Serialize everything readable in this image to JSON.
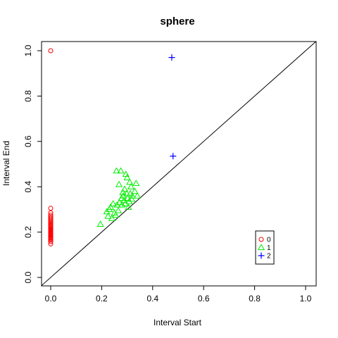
{
  "chart_data": {
    "type": "scatter",
    "title": "sphere",
    "xlabel": "Interval Start",
    "ylabel": "Interval End",
    "xlim": [
      0,
      1
    ],
    "ylim": [
      0,
      1
    ],
    "x_ticks": [
      "0.0",
      "0.2",
      "0.4",
      "0.6",
      "0.8",
      "1.0"
    ],
    "y_ticks": [
      "0.0",
      "0.2",
      "0.4",
      "0.6",
      "0.8",
      "1.0"
    ],
    "grid": false,
    "diagonal_line": true,
    "legend_position": "bottom-right",
    "series": [
      {
        "name": "0",
        "marker": "circle",
        "color": "#ff0000",
        "points": [
          [
            0,
            1.0
          ],
          [
            0,
            0.305
          ],
          [
            0,
            0.285
          ],
          [
            0,
            0.275
          ],
          [
            0,
            0.268
          ],
          [
            0,
            0.262
          ],
          [
            0,
            0.256
          ],
          [
            0,
            0.25
          ],
          [
            0,
            0.245
          ],
          [
            0,
            0.24
          ],
          [
            0,
            0.235
          ],
          [
            0,
            0.23
          ],
          [
            0,
            0.226
          ],
          [
            0,
            0.222
          ],
          [
            0,
            0.218
          ],
          [
            0,
            0.214
          ],
          [
            0,
            0.21
          ],
          [
            0,
            0.206
          ],
          [
            0,
            0.202
          ],
          [
            0,
            0.198
          ],
          [
            0,
            0.194
          ],
          [
            0,
            0.19
          ],
          [
            0,
            0.186
          ],
          [
            0,
            0.182
          ],
          [
            0,
            0.178
          ],
          [
            0,
            0.174
          ],
          [
            0,
            0.17
          ],
          [
            0,
            0.165
          ],
          [
            0,
            0.158
          ],
          [
            0,
            0.148
          ]
        ]
      },
      {
        "name": "1",
        "marker": "triangle",
        "color": "#00ee00",
        "points": [
          [
            0.195,
            0.235
          ],
          [
            0.22,
            0.29
          ],
          [
            0.225,
            0.27
          ],
          [
            0.23,
            0.3
          ],
          [
            0.235,
            0.31
          ],
          [
            0.24,
            0.26
          ],
          [
            0.245,
            0.325
          ],
          [
            0.25,
            0.285
          ],
          [
            0.255,
            0.275
          ],
          [
            0.258,
            0.47
          ],
          [
            0.26,
            0.32
          ],
          [
            0.265,
            0.295
          ],
          [
            0.268,
            0.41
          ],
          [
            0.27,
            0.33
          ],
          [
            0.275,
            0.47
          ],
          [
            0.278,
            0.35
          ],
          [
            0.28,
            0.32
          ],
          [
            0.283,
            0.375
          ],
          [
            0.285,
            0.36
          ],
          [
            0.288,
            0.34
          ],
          [
            0.29,
            0.39
          ],
          [
            0.293,
            0.325
          ],
          [
            0.295,
            0.455
          ],
          [
            0.298,
            0.37
          ],
          [
            0.3,
            0.44
          ],
          [
            0.302,
            0.35
          ],
          [
            0.305,
            0.31
          ],
          [
            0.308,
            0.335
          ],
          [
            0.31,
            0.42
          ],
          [
            0.312,
            0.37
          ],
          [
            0.315,
            0.4
          ],
          [
            0.318,
            0.345
          ],
          [
            0.32,
            0.36
          ],
          [
            0.33,
            0.38
          ],
          [
            0.335,
            0.415
          ],
          [
            0.34,
            0.36
          ]
        ]
      },
      {
        "name": "2",
        "marker": "plus",
        "color": "#0000ff",
        "points": [
          [
            0.475,
            0.97
          ],
          [
            0.48,
            0.535
          ]
        ]
      }
    ]
  }
}
